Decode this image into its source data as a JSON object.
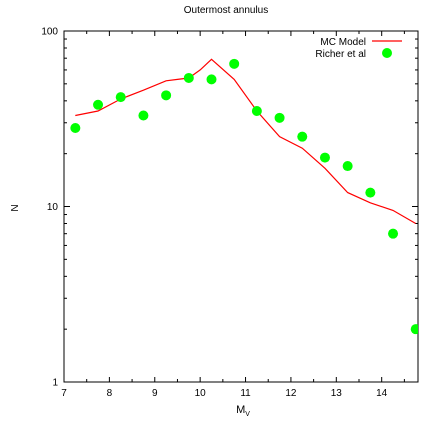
{
  "chart_data": {
    "type": "line",
    "title": "Outermost annulus",
    "xlabel": "M",
    "xlabel_sub": "V",
    "ylabel": "N",
    "xlim": [
      7,
      14.8
    ],
    "ylim": [
      1,
      100
    ],
    "y_scale": "log",
    "x_ticks": [
      "7",
      "8",
      "9",
      "10",
      "11",
      "12",
      "13",
      "14"
    ],
    "x_tick_values": [
      7,
      8,
      9,
      10,
      11,
      12,
      13,
      14
    ],
    "y_ticks": [
      "1",
      "10",
      "100"
    ],
    "y_tick_values": [
      1,
      10,
      100
    ],
    "grid": false,
    "legend_position": "top-right",
    "series": [
      {
        "name": "MC Model",
        "style": "line",
        "color": "#ff0000",
        "x": [
          7.25,
          7.75,
          8.25,
          8.75,
          9.25,
          9.5,
          9.75,
          10.0,
          10.25,
          10.75,
          11.25,
          11.75,
          12.25,
          12.75,
          13.25,
          13.75,
          14.25,
          14.75
        ],
        "y": [
          33,
          35,
          41,
          46,
          52,
          53,
          54,
          60,
          69,
          53,
          35,
          25,
          21.5,
          16.5,
          12,
          10.5,
          9.5,
          8
        ]
      },
      {
        "name": "Richer et al",
        "style": "points",
        "color": "#00ff00",
        "x": [
          7.25,
          7.75,
          8.25,
          8.75,
          9.25,
          9.75,
          10.25,
          10.75,
          11.25,
          11.75,
          12.25,
          12.75,
          13.25,
          13.75,
          14.25,
          14.75
        ],
        "y": [
          28,
          38,
          42,
          33,
          43,
          54,
          53,
          65,
          35,
          32,
          25,
          19,
          17,
          12,
          7,
          2
        ]
      }
    ]
  }
}
